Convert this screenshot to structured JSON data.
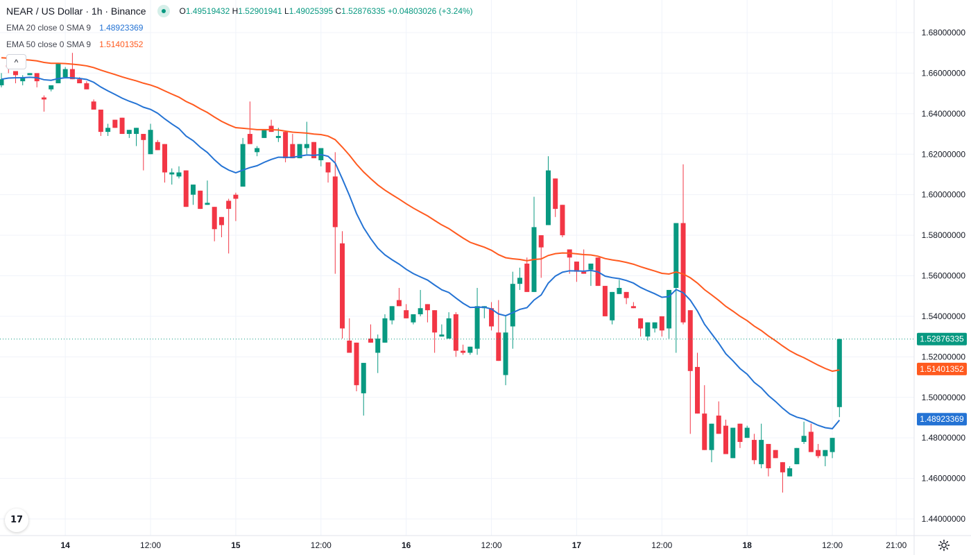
{
  "header": {
    "symbol_title": "NEAR / US Dollar · 1h · Binance",
    "ohlc": {
      "o_label": "O",
      "o": "1.49519432",
      "h_label": "H",
      "h": "1.52901941",
      "l_label": "L",
      "l": "1.49025395",
      "c_label": "C",
      "c": "1.52876335",
      "change": "+0.04803026 (+3.24%)"
    },
    "indicators": [
      {
        "label": "EMA 20 close 0 SMA 9",
        "value": "1.48923369",
        "color": "#2473d4"
      },
      {
        "label": "EMA 50 close 0 SMA 9",
        "value": "1.51401352",
        "color": "#ff5a1f"
      }
    ]
  },
  "controls": {
    "collapse_icon": "chevron-up-icon",
    "collapse_glyph": "^",
    "logo_text": "17",
    "settings_icon": "gear-icon"
  },
  "colors": {
    "up": "#089981",
    "down": "#f23645",
    "ema20": "#2473d4",
    "ema50": "#ff5a1f",
    "grid": "#f0f3fa"
  },
  "chart_data": {
    "type": "candlestick",
    "title": "NEAR / US Dollar · 1h · Binance",
    "interval": "1h",
    "ylim": [
      1.44,
      1.68
    ],
    "y_ticks": [
      "1.68000000",
      "1.66000000",
      "1.64000000",
      "1.62000000",
      "1.60000000",
      "1.58000000",
      "1.56000000",
      "1.54000000",
      "1.52000000",
      "1.50000000",
      "1.48000000",
      "1.46000000",
      "1.44000000"
    ],
    "x_ticks": [
      {
        "label": "14",
        "index": 9
      },
      {
        "label": "12:00",
        "index": 21
      },
      {
        "label": "15",
        "index": 33
      },
      {
        "label": "12:00",
        "index": 45
      },
      {
        "label": "16",
        "index": 57
      },
      {
        "label": "12:00",
        "index": 69
      },
      {
        "label": "17",
        "index": 81
      },
      {
        "label": "12:00",
        "index": 93
      },
      {
        "label": "18",
        "index": 105
      },
      {
        "label": "12:00",
        "index": 117
      },
      {
        "label": "21:00",
        "index": 126
      }
    ],
    "ema_seed": {
      "ema20": 1.657,
      "ema50": 1.668
    },
    "last_price": {
      "value": 1.52876335,
      "label": "1.52876335"
    },
    "ema_labels": [
      {
        "value": 1.51401352,
        "label": "1.51401352",
        "series": "ema50"
      },
      {
        "value": 1.48923369,
        "label": "1.48923369",
        "series": "ema20"
      }
    ],
    "candles_ohlc": [
      [
        1.654,
        1.66,
        1.653,
        1.657
      ],
      [
        1.664,
        1.665,
        1.66,
        1.663
      ],
      [
        1.661,
        1.661,
        1.655,
        1.659
      ],
      [
        1.656,
        1.659,
        1.654,
        1.658
      ],
      [
        1.659,
        1.66,
        1.659,
        1.66
      ],
      [
        1.66,
        1.66,
        1.653,
        1.656
      ],
      [
        1.648,
        1.649,
        1.641,
        1.647
      ],
      [
        1.652,
        1.654,
        1.651,
        1.654
      ],
      [
        1.655,
        1.665,
        1.655,
        1.665
      ],
      [
        1.658,
        1.663,
        1.658,
        1.662
      ],
      [
        1.662,
        1.67,
        1.657,
        1.657
      ],
      [
        1.657,
        1.658,
        1.655,
        1.655
      ],
      [
        1.655,
        1.656,
        1.652,
        1.652
      ],
      [
        1.646,
        1.647,
        1.642,
        1.642
      ],
      [
        1.642,
        1.642,
        1.629,
        1.631
      ],
      [
        1.631,
        1.635,
        1.629,
        1.633
      ],
      [
        1.637,
        1.637,
        1.633,
        1.633
      ],
      [
        1.638,
        1.638,
        1.63,
        1.63
      ],
      [
        1.63,
        1.632,
        1.628,
        1.632
      ],
      [
        1.63,
        1.633,
        1.624,
        1.633
      ],
      [
        1.63,
        1.63,
        1.612,
        1.627
      ],
      [
        1.62,
        1.635,
        1.62,
        1.632
      ],
      [
        1.626,
        1.627,
        1.622,
        1.622
      ],
      [
        1.625,
        1.625,
        1.606,
        1.611
      ],
      [
        1.61,
        1.613,
        1.605,
        1.611
      ],
      [
        1.609,
        1.614,
        1.608,
        1.611
      ],
      [
        1.612,
        1.612,
        1.594,
        1.594
      ],
      [
        1.6,
        1.605,
        1.595,
        1.605
      ],
      [
        1.602,
        1.602,
        1.593,
        1.593
      ],
      [
        1.595,
        1.607,
        1.595,
        1.596
      ],
      [
        1.594,
        1.594,
        1.577,
        1.583
      ],
      [
        1.589,
        1.589,
        1.579,
        1.585
      ],
      [
        1.597,
        1.598,
        1.571,
        1.593
      ],
      [
        1.6,
        1.601,
        1.587,
        1.598
      ],
      [
        1.604,
        1.628,
        1.604,
        1.625
      ],
      [
        1.63,
        1.646,
        1.625,
        1.625
      ],
      [
        1.621,
        1.624,
        1.619,
        1.623
      ],
      [
        1.628,
        1.632,
        1.628,
        1.632
      ],
      [
        1.634,
        1.637,
        1.631,
        1.631
      ],
      [
        1.628,
        1.633,
        1.626,
        1.629
      ],
      [
        1.631,
        1.631,
        1.616,
        1.618
      ],
      [
        1.625,
        1.63,
        1.618,
        1.618
      ],
      [
        1.618,
        1.625,
        1.618,
        1.625
      ],
      [
        1.623,
        1.636,
        1.62,
        1.625
      ],
      [
        1.626,
        1.626,
        1.618,
        1.618
      ],
      [
        1.617,
        1.623,
        1.614,
        1.623
      ],
      [
        1.616,
        1.616,
        1.606,
        1.611
      ],
      [
        1.609,
        1.621,
        1.561,
        1.584
      ],
      [
        1.576,
        1.582,
        1.529,
        1.534
      ],
      [
        1.528,
        1.539,
        1.522,
        1.522
      ],
      [
        1.527,
        1.527,
        1.503,
        1.506
      ],
      [
        1.502,
        1.517,
        1.491,
        1.517
      ],
      [
        1.529,
        1.536,
        1.527,
        1.527
      ],
      [
        1.522,
        1.531,
        1.512,
        1.529
      ],
      [
        1.527,
        1.541,
        1.527,
        1.539
      ],
      [
        1.538,
        1.545,
        1.536,
        1.545
      ],
      [
        1.548,
        1.554,
        1.545,
        1.545
      ],
      [
        1.543,
        1.546,
        1.539,
        1.539
      ],
      [
        1.537,
        1.541,
        1.536,
        1.541
      ],
      [
        1.541,
        1.553,
        1.54,
        1.544
      ],
      [
        1.546,
        1.546,
        1.537,
        1.543
      ],
      [
        1.543,
        1.543,
        1.522,
        1.532
      ],
      [
        1.53,
        1.536,
        1.53,
        1.531
      ],
      [
        1.529,
        1.542,
        1.529,
        1.539
      ],
      [
        1.541,
        1.542,
        1.52,
        1.523
      ],
      [
        1.523,
        1.526,
        1.521,
        1.522
      ],
      [
        1.522,
        1.525,
        1.521,
        1.525
      ],
      [
        1.524,
        1.554,
        1.521,
        1.545
      ],
      [
        1.544,
        1.545,
        1.539,
        1.545
      ],
      [
        1.544,
        1.547,
        1.533,
        1.535
      ],
      [
        1.532,
        1.548,
        1.518,
        1.518
      ],
      [
        1.511,
        1.54,
        1.506,
        1.532
      ],
      [
        1.535,
        1.562,
        1.524,
        1.556
      ],
      [
        1.556,
        1.564,
        1.553,
        1.559
      ],
      [
        1.566,
        1.569,
        1.552,
        1.552
      ],
      [
        1.552,
        1.599,
        1.552,
        1.584
      ],
      [
        1.58,
        1.58,
        1.559,
        1.574
      ],
      [
        1.585,
        1.619,
        1.585,
        1.612
      ],
      [
        1.608,
        1.608,
        1.589,
        1.593
      ],
      [
        1.595,
        1.595,
        1.579,
        1.58
      ],
      [
        1.573,
        1.573,
        1.561,
        1.569
      ],
      [
        1.567,
        1.567,
        1.557,
        1.562
      ],
      [
        1.562,
        1.573,
        1.561,
        1.561
      ],
      [
        1.563,
        1.566,
        1.555,
        1.566
      ],
      [
        1.569,
        1.569,
        1.555,
        1.555
      ],
      [
        1.555,
        1.555,
        1.54,
        1.54
      ],
      [
        1.538,
        1.552,
        1.536,
        1.552
      ],
      [
        1.551,
        1.558,
        1.551,
        1.554
      ],
      [
        1.552,
        1.552,
        1.546,
        1.549
      ],
      [
        1.545,
        1.547,
        1.544,
        1.544
      ],
      [
        1.539,
        1.539,
        1.53,
        1.534
      ],
      [
        1.53,
        1.537,
        1.528,
        1.537
      ],
      [
        1.534,
        1.537,
        1.532,
        1.537
      ],
      [
        1.54,
        1.54,
        1.53,
        1.533
      ],
      [
        1.534,
        1.553,
        1.529,
        1.553
      ],
      [
        1.554,
        1.586,
        1.522,
        1.586
      ],
      [
        1.586,
        1.615,
        1.536,
        1.537
      ],
      [
        1.543,
        1.543,
        1.482,
        1.513
      ],
      [
        1.515,
        1.522,
        1.492,
        1.492
      ],
      [
        1.492,
        1.506,
        1.474,
        1.474
      ],
      [
        1.474,
        1.487,
        1.468,
        1.487
      ],
      [
        1.491,
        1.498,
        1.482,
        1.482
      ],
      [
        1.486,
        1.489,
        1.472,
        1.472
      ],
      [
        1.47,
        1.485,
        1.47,
        1.485
      ],
      [
        1.487,
        1.487,
        1.475,
        1.478
      ],
      [
        1.48,
        1.486,
        1.48,
        1.485
      ],
      [
        1.479,
        1.482,
        1.467,
        1.469
      ],
      [
        1.467,
        1.487,
        1.465,
        1.479
      ],
      [
        1.477,
        1.477,
        1.461,
        1.465
      ],
      [
        1.474,
        1.474,
        1.47,
        1.47
      ],
      [
        1.468,
        1.468,
        1.453,
        1.463
      ],
      [
        1.461,
        1.466,
        1.461,
        1.465
      ],
      [
        1.467,
        1.475,
        1.467,
        1.475
      ],
      [
        1.478,
        1.488,
        1.477,
        1.481
      ],
      [
        1.483,
        1.487,
        1.473,
        1.473
      ],
      [
        1.474,
        1.477,
        1.47,
        1.471
      ],
      [
        1.471,
        1.474,
        1.466,
        1.474
      ],
      [
        1.473,
        1.48,
        1.47,
        1.48
      ],
      [
        1.49519432,
        1.52901941,
        1.49025395,
        1.52876335
      ]
    ]
  }
}
